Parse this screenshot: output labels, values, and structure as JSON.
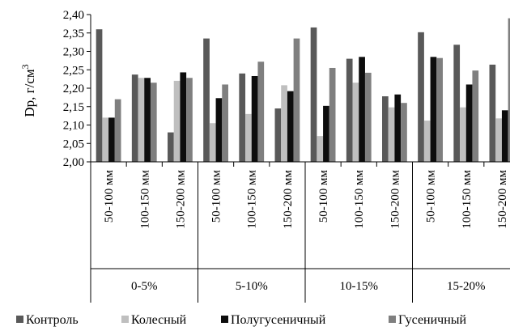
{
  "chart_data": {
    "type": "bar",
    "ylabel_main": "Dp, г/см",
    "ylabel_sup": "3",
    "ylim": [
      2.0,
      2.4
    ],
    "yticks": [
      "2,00",
      "2,05",
      "2,10",
      "2,15",
      "2,20",
      "2,25",
      "2,30",
      "2,35",
      "2,40"
    ],
    "groups": [
      "0-5%",
      "5-10%",
      "10-15%",
      "15-20%"
    ],
    "subcategories": [
      "50-100 мм",
      "100-150 мм",
      "150-200 мм"
    ],
    "series": [
      {
        "name": "Контроль",
        "color": "#595959",
        "values": [
          2.36,
          2.237,
          2.08,
          2.335,
          2.24,
          2.145,
          2.365,
          2.28,
          2.178,
          2.352,
          2.318,
          2.264
        ]
      },
      {
        "name": "Колесный",
        "color": "#bfbfbf",
        "values": [
          2.12,
          2.228,
          2.22,
          2.105,
          2.13,
          2.208,
          2.07,
          2.215,
          2.148,
          2.112,
          2.148,
          2.118
        ]
      },
      {
        "name": "Полугусеничный",
        "color": "#0d0d0d",
        "values": [
          2.12,
          2.228,
          2.243,
          2.173,
          2.233,
          2.192,
          2.152,
          2.285,
          2.183,
          2.285,
          2.21,
          2.14
        ]
      },
      {
        "name": "Гусеничный",
        "color": "#7f7f7f",
        "values": [
          2.17,
          2.215,
          2.228,
          2.21,
          2.272,
          2.335,
          2.255,
          2.242,
          2.16,
          2.282,
          2.248,
          2.39
        ]
      }
    ],
    "grid": false,
    "legend_position": "bottom"
  }
}
